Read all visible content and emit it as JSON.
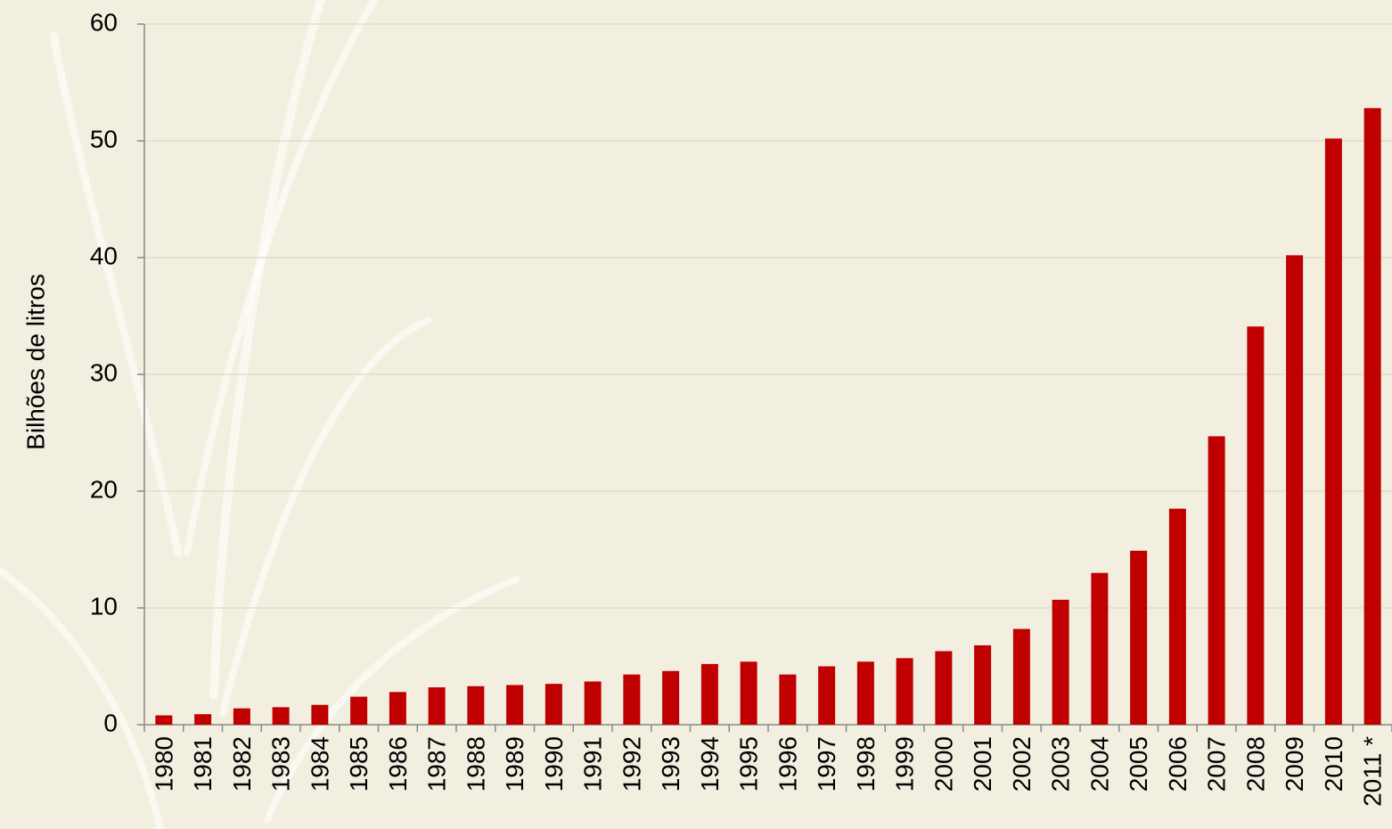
{
  "chart_data": {
    "type": "bar",
    "y_label": "Bilhões de litros",
    "categories": [
      "1980",
      "1981",
      "1982",
      "1983",
      "1984",
      "1985",
      "1986",
      "1987",
      "1988",
      "1989",
      "1990",
      "1991",
      "1992",
      "1993",
      "1994",
      "1995",
      "1996",
      "1997",
      "1998",
      "1999",
      "2000",
      "2001",
      "2002",
      "2003",
      "2004",
      "2005",
      "2006",
      "2007",
      "2008",
      "2009",
      "2010",
      "2011 *"
    ],
    "values": [
      0.8,
      0.9,
      1.4,
      1.5,
      1.7,
      2.4,
      2.8,
      3.2,
      3.3,
      3.4,
      3.5,
      3.7,
      4.3,
      4.6,
      5.2,
      5.4,
      4.3,
      5.0,
      5.4,
      5.7,
      6.3,
      6.8,
      8.2,
      10.7,
      13.0,
      14.9,
      18.5,
      24.7,
      34.1,
      40.2,
      50.2,
      52.8
    ],
    "color": "#c00000",
    "ylim": [
      0,
      60
    ],
    "yticks": [
      0,
      10,
      20,
      30,
      40,
      50,
      60
    ],
    "grid": true
  }
}
